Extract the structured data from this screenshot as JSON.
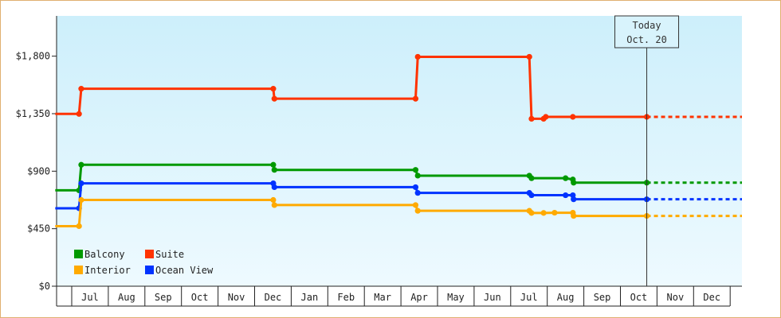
{
  "chart_data": {
    "type": "line",
    "step": true,
    "y_ticks": [
      0,
      450,
      900,
      1350,
      1800
    ],
    "y_tick_labels": [
      "$0",
      "$450",
      "$900",
      "$1,350",
      "$1,800"
    ],
    "ylim": [
      0,
      2115
    ],
    "months": [
      "Jul",
      "Aug",
      "Sep",
      "Oct",
      "Nov",
      "Dec",
      "Jan",
      "Feb",
      "Mar",
      "Apr",
      "May",
      "Jun",
      "Jul",
      "Aug",
      "Sep",
      "Oct",
      "Nov",
      "Dec"
    ],
    "today_label_line1": "Today",
    "today_label_line2": "Oct. 20",
    "today_x": 15.72,
    "series": [
      {
        "name": "Suite",
        "color": "#ff3300",
        "points": [
          [
            -0.45,
            1348
          ],
          [
            0.2,
            1348
          ],
          [
            0.26,
            1545
          ],
          [
            5.51,
            1545
          ],
          [
            5.54,
            1467
          ],
          [
            9.4,
            1467
          ],
          [
            9.46,
            1795
          ],
          [
            12.51,
            1795
          ],
          [
            12.57,
            1310
          ],
          [
            12.9,
            1310
          ],
          [
            12.96,
            1325
          ],
          [
            13.7,
            1325
          ],
          [
            15.72,
            1325
          ]
        ]
      },
      {
        "name": "Balcony",
        "color": "#009900",
        "points": [
          [
            -0.45,
            750
          ],
          [
            0.2,
            750
          ],
          [
            0.26,
            950
          ],
          [
            5.51,
            950
          ],
          [
            5.54,
            910
          ],
          [
            9.4,
            910
          ],
          [
            9.46,
            865
          ],
          [
            12.51,
            865
          ],
          [
            12.57,
            845
          ],
          [
            13.5,
            845
          ],
          [
            13.7,
            835
          ],
          [
            13.72,
            810
          ],
          [
            15.72,
            810
          ]
        ]
      },
      {
        "name": "Ocean View",
        "color": "#0033ff",
        "points": [
          [
            -0.45,
            610
          ],
          [
            0.2,
            610
          ],
          [
            0.26,
            805
          ],
          [
            5.51,
            805
          ],
          [
            5.54,
            775
          ],
          [
            9.4,
            775
          ],
          [
            9.46,
            730
          ],
          [
            12.51,
            730
          ],
          [
            12.57,
            712
          ],
          [
            13.5,
            712
          ],
          [
            13.7,
            712
          ],
          [
            13.72,
            680
          ],
          [
            15.72,
            680
          ]
        ]
      },
      {
        "name": "Interior",
        "color": "#ffaa00",
        "points": [
          [
            -0.45,
            470
          ],
          [
            0.2,
            470
          ],
          [
            0.26,
            675
          ],
          [
            5.51,
            675
          ],
          [
            5.54,
            635
          ],
          [
            9.4,
            635
          ],
          [
            9.46,
            590
          ],
          [
            12.51,
            590
          ],
          [
            12.57,
            573
          ],
          [
            12.9,
            573
          ],
          [
            13.2,
            575
          ],
          [
            13.7,
            575
          ],
          [
            13.72,
            550
          ],
          [
            15.72,
            550
          ]
        ]
      }
    ],
    "legend": [
      {
        "name": "Balcony",
        "color": "#009900"
      },
      {
        "name": "Suite",
        "color": "#ff3300"
      },
      {
        "name": "Interior",
        "color": "#ffaa00"
      },
      {
        "name": "Ocean View",
        "color": "#0033ff"
      }
    ],
    "legend_position": "bottom-left",
    "projection": "dashed from today to right edge"
  }
}
